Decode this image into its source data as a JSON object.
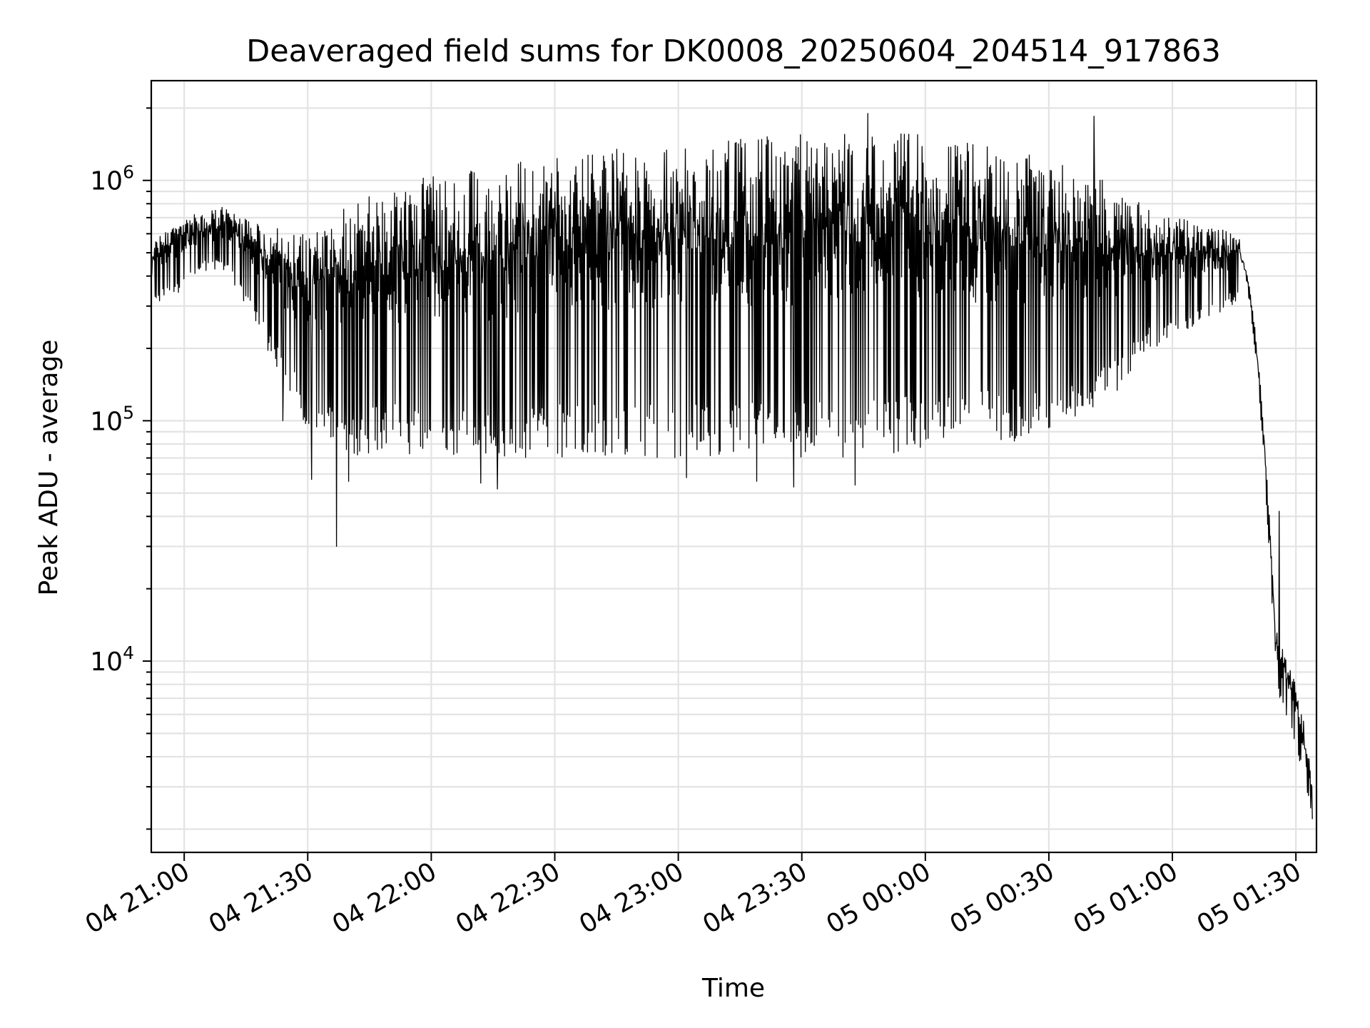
{
  "chart_data": {
    "type": "line",
    "title": "Deaveraged field sums for DK0008_20250604_204514_917863",
    "xlabel": "Time",
    "ylabel": "Peak ADU - average",
    "xscale": "time",
    "yscale": "log",
    "xlim": [
      "2025-06-04 20:52",
      "2025-06-05 01:35"
    ],
    "ylim": [
      1600,
      2600000
    ],
    "grid": true,
    "legend": "none",
    "line_color": "#000000",
    "x_ticks": [
      {
        "label": "04 21:00",
        "value": "2025-06-04 21:00"
      },
      {
        "label": "04 21:30",
        "value": "2025-06-04 21:30"
      },
      {
        "label": "04 22:00",
        "value": "2025-06-04 22:00"
      },
      {
        "label": "04 22:30",
        "value": "2025-06-04 22:30"
      },
      {
        "label": "04 23:00",
        "value": "2025-06-04 23:00"
      },
      {
        "label": "04 23:30",
        "value": "2025-06-04 23:30"
      },
      {
        "label": "05 00:00",
        "value": "2025-06-05 00:00"
      },
      {
        "label": "05 00:30",
        "value": "2025-06-05 00:30"
      },
      {
        "label": "05 01:00",
        "value": "2025-06-05 01:00"
      },
      {
        "label": "05 01:30",
        "value": "2025-06-05 01:30"
      }
    ],
    "y_ticks": [
      {
        "value": 10000,
        "base": "10",
        "exp": "4"
      },
      {
        "value": 100000,
        "base": "10",
        "exp": "5"
      },
      {
        "value": 1000000,
        "base": "10",
        "exp": "6"
      }
    ],
    "series": [
      {
        "envelope": [
          {
            "x": "2025-06-04 20:52",
            "upper": 550000,
            "lower": 300000
          },
          {
            "x": "2025-06-04 21:00",
            "upper": 700000,
            "lower": 350000
          },
          {
            "x": "2025-06-04 21:05",
            "upper": 750000,
            "lower": 420000
          },
          {
            "x": "2025-06-04 21:10",
            "upper": 780000,
            "lower": 420000
          },
          {
            "x": "2025-06-04 21:15",
            "upper": 700000,
            "lower": 300000
          },
          {
            "x": "2025-06-04 21:20",
            "upper": 650000,
            "lower": 200000
          },
          {
            "x": "2025-06-04 21:25",
            "upper": 620000,
            "lower": 140000
          },
          {
            "x": "2025-06-04 21:30",
            "upper": 600000,
            "lower": 90000
          },
          {
            "x": "2025-06-04 21:40",
            "upper": 800000,
            "lower": 70000
          },
          {
            "x": "2025-06-04 21:50",
            "upper": 950000,
            "lower": 75000
          },
          {
            "x": "2025-06-04 22:00",
            "upper": 1050000,
            "lower": 70000
          },
          {
            "x": "2025-06-04 22:15",
            "upper": 1150000,
            "lower": 65000
          },
          {
            "x": "2025-06-04 22:30",
            "upper": 1300000,
            "lower": 70000
          },
          {
            "x": "2025-06-04 22:45",
            "upper": 1350000,
            "lower": 70000
          },
          {
            "x": "2025-06-04 23:00",
            "upper": 1400000,
            "lower": 70000
          },
          {
            "x": "2025-06-04 23:15",
            "upper": 1500000,
            "lower": 70000
          },
          {
            "x": "2025-06-04 23:30",
            "upper": 1550000,
            "lower": 70000
          },
          {
            "x": "2025-06-04 23:45",
            "upper": 1600000,
            "lower": 70000
          },
          {
            "x": "2025-06-05 00:00",
            "upper": 1550000,
            "lower": 75000
          },
          {
            "x": "2025-06-05 00:15",
            "upper": 1400000,
            "lower": 80000
          },
          {
            "x": "2025-06-05 00:30",
            "upper": 1250000,
            "lower": 85000
          },
          {
            "x": "2025-06-05 00:45",
            "upper": 1000000,
            "lower": 120000
          },
          {
            "x": "2025-06-05 00:55",
            "upper": 750000,
            "lower": 200000
          },
          {
            "x": "2025-06-05 01:10",
            "upper": 650000,
            "lower": 260000
          },
          {
            "x": "2025-06-05 01:16",
            "upper": 600000,
            "lower": 320000
          },
          {
            "x": "2025-06-05 01:18",
            "upper": 430000,
            "lower": 380000
          },
          {
            "x": "2025-06-05 01:20",
            "upper": 260000,
            "lower": 200000
          },
          {
            "x": "2025-06-05 01:22",
            "upper": 110000,
            "lower": 80000
          },
          {
            "x": "2025-06-05 01:24",
            "upper": 30000,
            "lower": 20000
          },
          {
            "x": "2025-06-05 01:25",
            "upper": 15000,
            "lower": 8000
          },
          {
            "x": "2025-06-05 01:27",
            "upper": 11000,
            "lower": 6000
          },
          {
            "x": "2025-06-05 01:30",
            "upper": 8000,
            "lower": 4500
          },
          {
            "x": "2025-06-05 01:32",
            "upper": 5500,
            "lower": 3000
          },
          {
            "x": "2025-06-05 01:34",
            "upper": 3300,
            "lower": 2200
          }
        ],
        "spikes": [
          {
            "x": "2025-06-04 21:24",
            "y": 100000
          },
          {
            "x": "2025-06-04 21:31",
            "y": 57000
          },
          {
            "x": "2025-06-04 21:37",
            "y": 30000
          },
          {
            "x": "2025-06-04 21:40",
            "y": 56000
          },
          {
            "x": "2025-06-04 22:12",
            "y": 55000
          },
          {
            "x": "2025-06-04 22:16",
            "y": 52000
          },
          {
            "x": "2025-06-04 23:02",
            "y": 58000
          },
          {
            "x": "2025-06-04 23:19",
            "y": 56000
          },
          {
            "x": "2025-06-04 23:28",
            "y": 53000
          },
          {
            "x": "2025-06-04 23:43",
            "y": 54000
          },
          {
            "x": "2025-06-04 23:46",
            "y": 1900000
          },
          {
            "x": "2025-06-05 00:41",
            "y": 1850000
          },
          {
            "x": "2025-06-05 01:26",
            "y": 42000
          },
          {
            "x": "2025-06-05 01:26",
            "y": 4400
          },
          {
            "x": "2025-06-05 01:34",
            "y": 2200
          }
        ]
      }
    ]
  }
}
